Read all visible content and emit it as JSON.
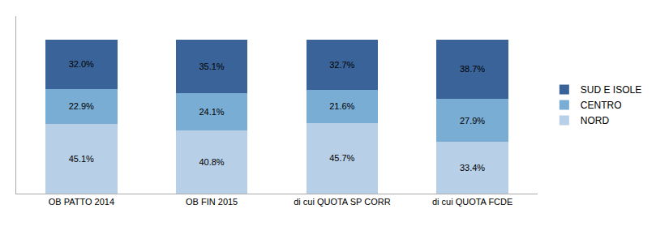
{
  "chart_data": {
    "type": "bar",
    "stacked": true,
    "categories": [
      "OB PATTO 2014",
      "OB FIN 2015",
      "di cui QUOTA SP CORR",
      "di cui QUOTA FCDE"
    ],
    "series": [
      {
        "name": "NORD",
        "color": "#b8cfe8",
        "values": [
          45.1,
          40.8,
          45.7,
          33.4
        ],
        "value_labels": [
          "45.1%",
          "40.8%",
          "45.7%",
          "33.4%"
        ]
      },
      {
        "name": "CENTRO",
        "color": "#7aadd4",
        "values": [
          22.9,
          24.1,
          21.6,
          27.9
        ],
        "value_labels": [
          "22.9%",
          "24.1%",
          "21.6%",
          "27.9%"
        ]
      },
      {
        "name": "SUD E ISOLE",
        "color": "#3a6499",
        "values": [
          32.0,
          35.1,
          32.7,
          38.7
        ],
        "value_labels": [
          "32.0%",
          "35.1%",
          "32.7%",
          "38.7%"
        ]
      }
    ],
    "ylim": [
      0,
      115
    ],
    "data_labels": true,
    "tick_labels": "x",
    "grid": false,
    "legend": "right"
  }
}
